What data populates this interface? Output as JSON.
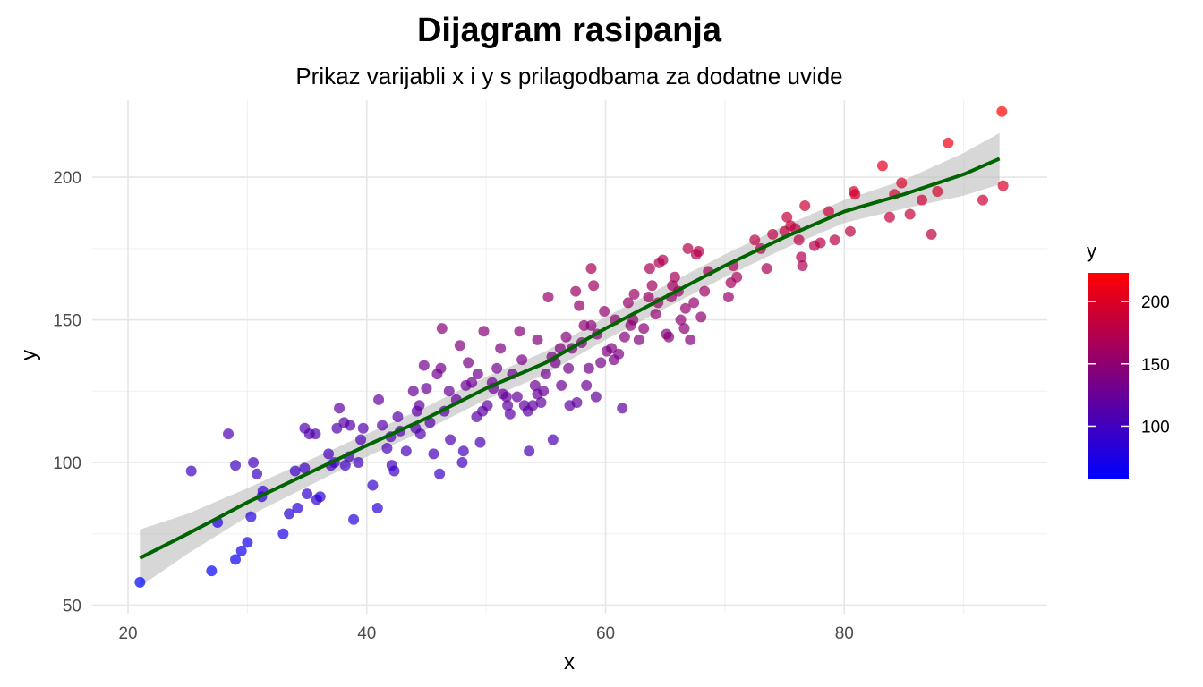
{
  "chart_data": {
    "type": "scatter",
    "title": "Dijagram rasipanja",
    "subtitle": "Prikaz varijabli x i y s prilagodbama za dodatne uvide",
    "xlabel": "x",
    "ylabel": "y",
    "xlim": [
      17,
      97
    ],
    "ylim": [
      47,
      227
    ],
    "x_ticks": [
      20,
      40,
      60,
      80
    ],
    "y_ticks": [
      50,
      100,
      150,
      200
    ],
    "grid": true,
    "color_scale": {
      "title": "y",
      "low": "#0000ff",
      "high": "#ff0000",
      "range": [
        58,
        223
      ],
      "ticks": [
        100,
        150,
        200
      ]
    },
    "points_color": "colored by y, alpha 0.7",
    "trend_color": "#006400",
    "band_color": "#bdbdbd",
    "trend": {
      "x": [
        21,
        25,
        30,
        35,
        40,
        45,
        50,
        55,
        60,
        65,
        70,
        75,
        80,
        85,
        90,
        93
      ],
      "y": [
        66.5,
        75,
        86,
        96,
        106,
        115.5,
        126,
        135,
        147,
        158,
        169,
        179,
        188,
        194,
        201,
        206.5
      ],
      "band": [
        10,
        7,
        5,
        4.5,
        4,
        4,
        4,
        4,
        4,
        4,
        4,
        4,
        4,
        5,
        7.5,
        9
      ]
    },
    "points": [
      {
        "x": 21,
        "y": 58
      },
      {
        "x": 25.3,
        "y": 97
      },
      {
        "x": 27,
        "y": 62
      },
      {
        "x": 27.5,
        "y": 79
      },
      {
        "x": 28.4,
        "y": 110
      },
      {
        "x": 29,
        "y": 99
      },
      {
        "x": 29,
        "y": 66
      },
      {
        "x": 29.5,
        "y": 69
      },
      {
        "x": 30,
        "y": 72
      },
      {
        "x": 30.3,
        "y": 81
      },
      {
        "x": 30.5,
        "y": 100
      },
      {
        "x": 30.8,
        "y": 96
      },
      {
        "x": 31.2,
        "y": 88
      },
      {
        "x": 31.3,
        "y": 90
      },
      {
        "x": 33,
        "y": 75
      },
      {
        "x": 33.5,
        "y": 82
      },
      {
        "x": 34,
        "y": 97
      },
      {
        "x": 34.2,
        "y": 84
      },
      {
        "x": 34.8,
        "y": 98
      },
      {
        "x": 34.8,
        "y": 112
      },
      {
        "x": 35,
        "y": 89
      },
      {
        "x": 35.2,
        "y": 110
      },
      {
        "x": 35.7,
        "y": 110
      },
      {
        "x": 35.8,
        "y": 87
      },
      {
        "x": 36.1,
        "y": 88
      },
      {
        "x": 36.8,
        "y": 103
      },
      {
        "x": 37,
        "y": 99
      },
      {
        "x": 37.3,
        "y": 100
      },
      {
        "x": 37.5,
        "y": 112
      },
      {
        "x": 37.7,
        "y": 119
      },
      {
        "x": 38.1,
        "y": 114
      },
      {
        "x": 38.2,
        "y": 99
      },
      {
        "x": 38.5,
        "y": 102
      },
      {
        "x": 38.6,
        "y": 113
      },
      {
        "x": 38.9,
        "y": 80
      },
      {
        "x": 39.3,
        "y": 100
      },
      {
        "x": 39.5,
        "y": 108
      },
      {
        "x": 39.7,
        "y": 112
      },
      {
        "x": 40.5,
        "y": 92
      },
      {
        "x": 40.9,
        "y": 84
      },
      {
        "x": 41,
        "y": 122
      },
      {
        "x": 41.3,
        "y": 113
      },
      {
        "x": 41.7,
        "y": 105
      },
      {
        "x": 42,
        "y": 109
      },
      {
        "x": 42.1,
        "y": 99
      },
      {
        "x": 42.3,
        "y": 97
      },
      {
        "x": 42.6,
        "y": 116
      },
      {
        "x": 42.8,
        "y": 111
      },
      {
        "x": 43.3,
        "y": 104
      },
      {
        "x": 43.9,
        "y": 125
      },
      {
        "x": 44.1,
        "y": 112
      },
      {
        "x": 44.2,
        "y": 118
      },
      {
        "x": 44.4,
        "y": 120
      },
      {
        "x": 44.5,
        "y": 110
      },
      {
        "x": 44.8,
        "y": 134
      },
      {
        "x": 45,
        "y": 126
      },
      {
        "x": 45.3,
        "y": 114
      },
      {
        "x": 45.6,
        "y": 103
      },
      {
        "x": 45.9,
        "y": 131
      },
      {
        "x": 46.2,
        "y": 133
      },
      {
        "x": 46.1,
        "y": 96
      },
      {
        "x": 46.3,
        "y": 147
      },
      {
        "x": 46.5,
        "y": 118
      },
      {
        "x": 46.9,
        "y": 125
      },
      {
        "x": 47,
        "y": 108
      },
      {
        "x": 47.5,
        "y": 122
      },
      {
        "x": 47.8,
        "y": 141
      },
      {
        "x": 48,
        "y": 100
      },
      {
        "x": 48.1,
        "y": 104
      },
      {
        "x": 48.3,
        "y": 127
      },
      {
        "x": 48.8,
        "y": 128
      },
      {
        "x": 48.5,
        "y": 135
      },
      {
        "x": 49.2,
        "y": 116
      },
      {
        "x": 49.3,
        "y": 131
      },
      {
        "x": 49.7,
        "y": 118
      },
      {
        "x": 49.5,
        "y": 107
      },
      {
        "x": 49.8,
        "y": 146
      },
      {
        "x": 50.1,
        "y": 120
      },
      {
        "x": 50.5,
        "y": 128
      },
      {
        "x": 50.6,
        "y": 126
      },
      {
        "x": 50.9,
        "y": 133
      },
      {
        "x": 51.2,
        "y": 140
      },
      {
        "x": 51.4,
        "y": 124
      },
      {
        "x": 51.8,
        "y": 120
      },
      {
        "x": 51.7,
        "y": 123
      },
      {
        "x": 52,
        "y": 117
      },
      {
        "x": 52.2,
        "y": 131
      },
      {
        "x": 52.6,
        "y": 123
      },
      {
        "x": 52.8,
        "y": 146
      },
      {
        "x": 53,
        "y": 136
      },
      {
        "x": 53.2,
        "y": 120
      },
      {
        "x": 53.5,
        "y": 118
      },
      {
        "x": 53.6,
        "y": 104
      },
      {
        "x": 53.9,
        "y": 120
      },
      {
        "x": 54.1,
        "y": 127
      },
      {
        "x": 54.3,
        "y": 124
      },
      {
        "x": 54.3,
        "y": 143
      },
      {
        "x": 54.6,
        "y": 121
      },
      {
        "x": 54.8,
        "y": 125
      },
      {
        "x": 55,
        "y": 131
      },
      {
        "x": 55.2,
        "y": 158
      },
      {
        "x": 55.5,
        "y": 137
      },
      {
        "x": 55.6,
        "y": 108
      },
      {
        "x": 55.8,
        "y": 135
      },
      {
        "x": 56.2,
        "y": 140
      },
      {
        "x": 56.3,
        "y": 127
      },
      {
        "x": 56.7,
        "y": 144
      },
      {
        "x": 56.9,
        "y": 133
      },
      {
        "x": 57,
        "y": 120
      },
      {
        "x": 57.2,
        "y": 140
      },
      {
        "x": 57.5,
        "y": 160
      },
      {
        "x": 57.6,
        "y": 121
      },
      {
        "x": 57.8,
        "y": 155
      },
      {
        "x": 58,
        "y": 142
      },
      {
        "x": 58.2,
        "y": 148
      },
      {
        "x": 58.4,
        "y": 127
      },
      {
        "x": 58.6,
        "y": 133
      },
      {
        "x": 58.8,
        "y": 168
      },
      {
        "x": 58.8,
        "y": 148
      },
      {
        "x": 59,
        "y": 162
      },
      {
        "x": 59.3,
        "y": 145
      },
      {
        "x": 59.2,
        "y": 123
      },
      {
        "x": 59.6,
        "y": 135
      },
      {
        "x": 59.9,
        "y": 153
      },
      {
        "x": 60.1,
        "y": 139
      },
      {
        "x": 60.5,
        "y": 140
      },
      {
        "x": 60.7,
        "y": 136
      },
      {
        "x": 60.8,
        "y": 150
      },
      {
        "x": 61.1,
        "y": 138
      },
      {
        "x": 61.4,
        "y": 119
      },
      {
        "x": 61.6,
        "y": 144
      },
      {
        "x": 61.9,
        "y": 156
      },
      {
        "x": 62.1,
        "y": 148
      },
      {
        "x": 62.3,
        "y": 150
      },
      {
        "x": 62.4,
        "y": 159
      },
      {
        "x": 62.8,
        "y": 143
      },
      {
        "x": 63.2,
        "y": 147
      },
      {
        "x": 63.6,
        "y": 158
      },
      {
        "x": 63.7,
        "y": 168
      },
      {
        "x": 63.9,
        "y": 162
      },
      {
        "x": 64.2,
        "y": 152
      },
      {
        "x": 64.4,
        "y": 156
      },
      {
        "x": 64.5,
        "y": 170
      },
      {
        "x": 64.8,
        "y": 171
      },
      {
        "x": 65.1,
        "y": 145
      },
      {
        "x": 65.3,
        "y": 144
      },
      {
        "x": 65.5,
        "y": 158
      },
      {
        "x": 65.6,
        "y": 162
      },
      {
        "x": 65.8,
        "y": 165
      },
      {
        "x": 66.1,
        "y": 160
      },
      {
        "x": 66.3,
        "y": 150
      },
      {
        "x": 66.6,
        "y": 147
      },
      {
        "x": 66.7,
        "y": 154
      },
      {
        "x": 66.9,
        "y": 175
      },
      {
        "x": 67.1,
        "y": 143
      },
      {
        "x": 67.4,
        "y": 156
      },
      {
        "x": 67.6,
        "y": 173
      },
      {
        "x": 67.8,
        "y": 174
      },
      {
        "x": 68,
        "y": 151
      },
      {
        "x": 68.3,
        "y": 160
      },
      {
        "x": 68.6,
        "y": 167
      },
      {
        "x": 70.3,
        "y": 158
      },
      {
        "x": 70.5,
        "y": 163
      },
      {
        "x": 70.7,
        "y": 169
      },
      {
        "x": 71,
        "y": 165
      },
      {
        "x": 72.5,
        "y": 178
      },
      {
        "x": 73,
        "y": 175
      },
      {
        "x": 73.5,
        "y": 168
      },
      {
        "x": 74,
        "y": 180
      },
      {
        "x": 75,
        "y": 181
      },
      {
        "x": 75.2,
        "y": 186
      },
      {
        "x": 75.5,
        "y": 183
      },
      {
        "x": 75.9,
        "y": 182
      },
      {
        "x": 76.2,
        "y": 178
      },
      {
        "x": 76.4,
        "y": 172
      },
      {
        "x": 76.5,
        "y": 169
      },
      {
        "x": 76.7,
        "y": 190
      },
      {
        "x": 77.5,
        "y": 176
      },
      {
        "x": 78,
        "y": 177
      },
      {
        "x": 78.7,
        "y": 188
      },
      {
        "x": 79.2,
        "y": 178
      },
      {
        "x": 80.5,
        "y": 181
      },
      {
        "x": 80.8,
        "y": 195
      },
      {
        "x": 80.9,
        "y": 194
      },
      {
        "x": 83.2,
        "y": 204
      },
      {
        "x": 83.8,
        "y": 186
      },
      {
        "x": 84.2,
        "y": 194
      },
      {
        "x": 84.8,
        "y": 198
      },
      {
        "x": 85.5,
        "y": 187
      },
      {
        "x": 86.5,
        "y": 192
      },
      {
        "x": 87.3,
        "y": 180
      },
      {
        "x": 87.8,
        "y": 195
      },
      {
        "x": 88.7,
        "y": 212
      },
      {
        "x": 91.6,
        "y": 192
      },
      {
        "x": 93.2,
        "y": 223
      },
      {
        "x": 93.3,
        "y": 197
      }
    ]
  }
}
